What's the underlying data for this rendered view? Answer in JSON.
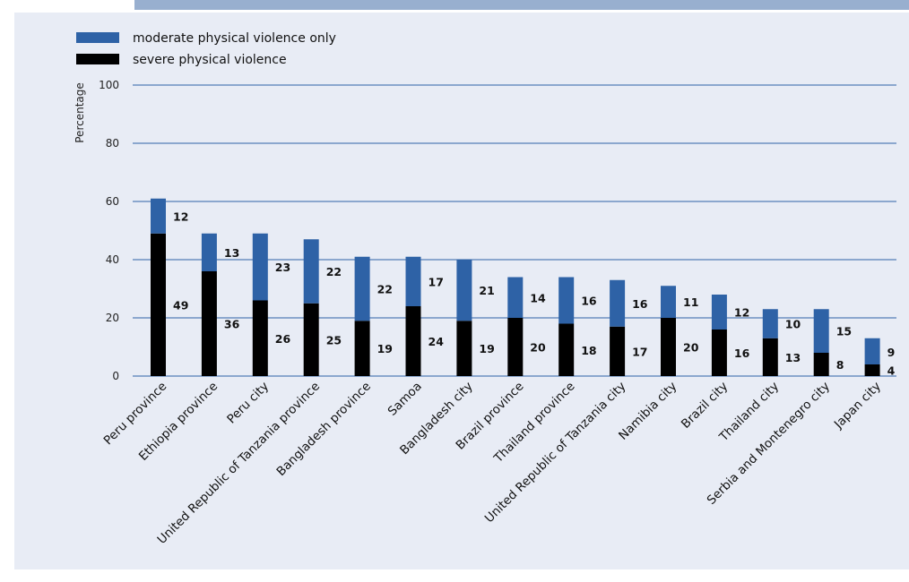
{
  "colors": {
    "moderate": "#2e62a6",
    "severe": "#000000",
    "gridline": "#2e62a6",
    "panel": "#e8ecf5"
  },
  "chart_data": {
    "type": "bar",
    "stacked": true,
    "ylabel": "Percentage",
    "ylim": [
      0,
      100
    ],
    "yticks": [
      0,
      20,
      40,
      60,
      80,
      100
    ],
    "grid": true,
    "legend_position": "top-left",
    "categories": [
      "Peru province",
      "Ethiopia province",
      "Peru city",
      "United Republic of Tanzania province",
      "Bangladesh province",
      "Samoa",
      "Bangladesh city",
      "Brazil province",
      "Thailand province",
      "United Republic of Tanzania city",
      "Namibia city",
      "Brazil city",
      "Thailand city",
      "Serbia and Montenegro city",
      "Japan city"
    ],
    "series": [
      {
        "name": "severe physical violence",
        "color": "#000000",
        "values": [
          49,
          36,
          26,
          25,
          19,
          24,
          19,
          20,
          18,
          17,
          20,
          16,
          13,
          8,
          4
        ]
      },
      {
        "name": "moderate physical violence only",
        "color": "#2e62a6",
        "values": [
          12,
          13,
          23,
          22,
          22,
          17,
          21,
          14,
          16,
          16,
          11,
          12,
          10,
          15,
          9
        ]
      }
    ]
  }
}
